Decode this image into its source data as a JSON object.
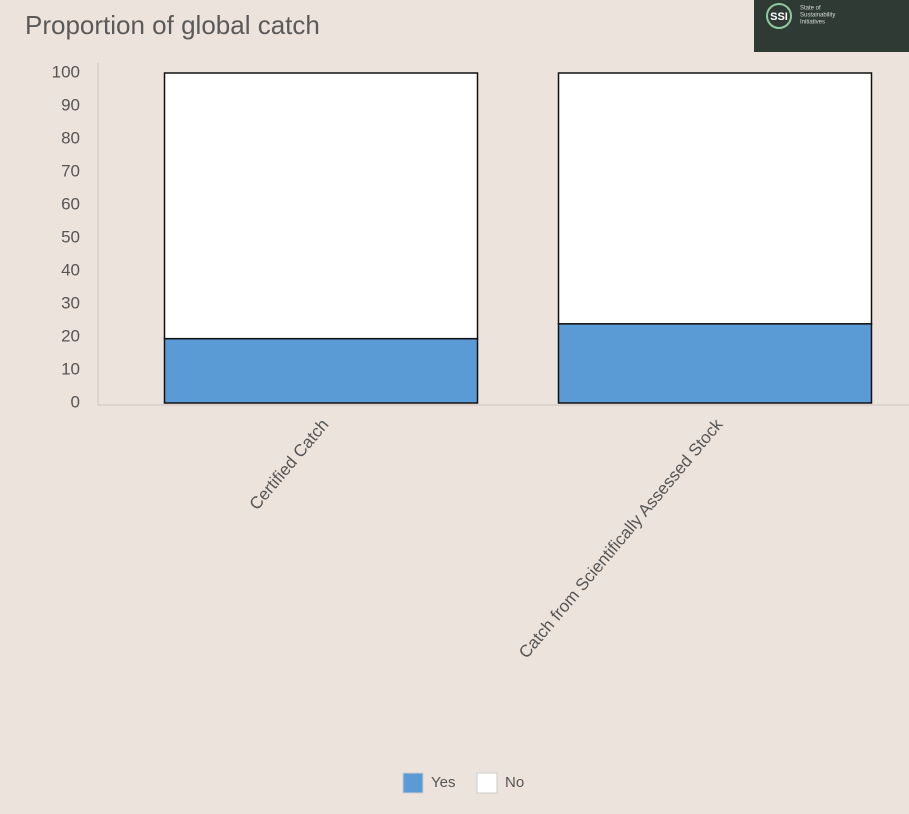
{
  "chart_data": {
    "type": "stacked-bar",
    "title": "Proportion of global catch",
    "categories": [
      "Certified Catch",
      "Catch from Scientifically Assessed Stock"
    ],
    "series": [
      {
        "name": "Yes",
        "color": "#5b9bd5",
        "values": [
          19.5,
          24
        ]
      },
      {
        "name": "No",
        "color": "#ffffff",
        "values": [
          80.5,
          76
        ]
      }
    ],
    "ylim": [
      0,
      100
    ],
    "yticks": [
      0,
      10,
      20,
      30,
      40,
      50,
      60,
      70,
      80,
      90,
      100
    ]
  },
  "logo": {
    "short": "SSI",
    "lines": [
      "State of",
      "Sustainability",
      "Initiatives"
    ]
  }
}
